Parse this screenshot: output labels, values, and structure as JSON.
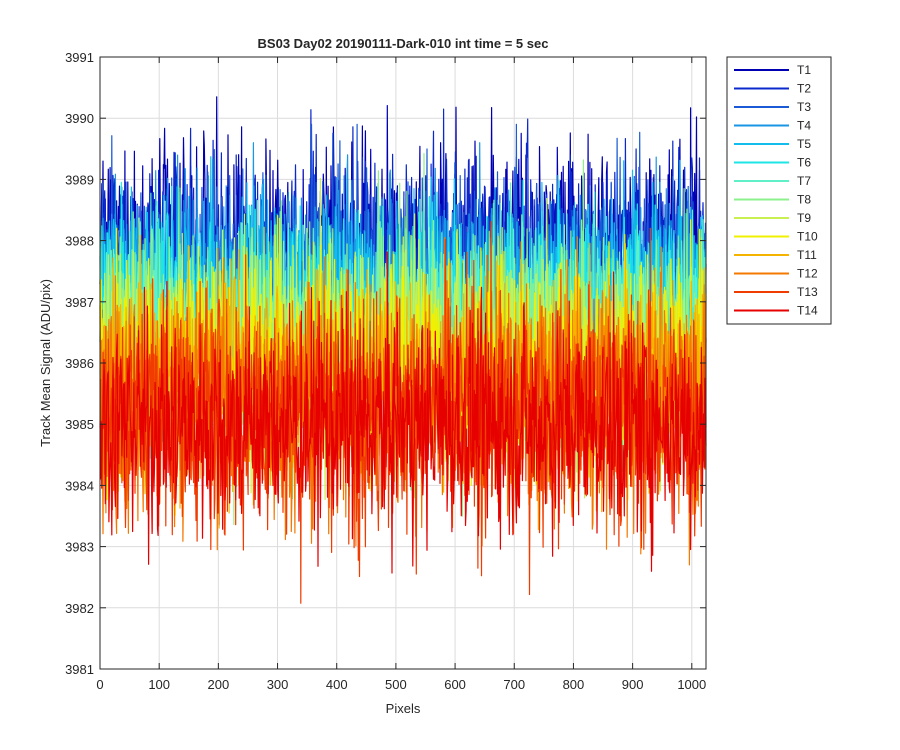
{
  "chart_data": {
    "type": "line",
    "title": "BS03 Day02 20190111-Dark-010 int time = 5 sec",
    "xlabel": "Pixels",
    "ylabel": "Track Mean Signal (ADU/pix)",
    "xlim": [
      0,
      1024
    ],
    "ylim": [
      3981,
      3991
    ],
    "xticks": [
      0,
      100,
      200,
      300,
      400,
      500,
      600,
      700,
      800,
      900,
      1000
    ],
    "yticks": [
      3981,
      3982,
      3983,
      3984,
      3985,
      3986,
      3987,
      3988,
      3989,
      3990,
      3991
    ],
    "grid": true,
    "legend_position": "outside-top-right",
    "points_per_series": 1024,
    "series": [
      {
        "name": "T1",
        "color": "#0000b3",
        "approx_mean": 3987.8,
        "approx_min": 3983.6,
        "approx_max": 3990.35
      },
      {
        "name": "T2",
        "color": "#0a28cc",
        "approx_mean": 3987.6,
        "approx_min": 3983.6,
        "approx_max": 3990.35
      },
      {
        "name": "T3",
        "color": "#1a5ad6",
        "approx_mean": 3987.4,
        "approx_min": 3983.5,
        "approx_max": 3989.9
      },
      {
        "name": "T4",
        "color": "#1a96e6",
        "approx_mean": 3987.2,
        "approx_min": 3983.4,
        "approx_max": 3989.6
      },
      {
        "name": "T5",
        "color": "#12bcec",
        "approx_mean": 3987.0,
        "approx_min": 3983.3,
        "approx_max": 3989.5
      },
      {
        "name": "T6",
        "color": "#1ee6e6",
        "approx_mean": 3986.8,
        "approx_min": 3983.2,
        "approx_max": 3989.4
      },
      {
        "name": "T7",
        "color": "#5ff0c8",
        "approx_mean": 3986.6,
        "approx_min": 3983.1,
        "approx_max": 3989.3
      },
      {
        "name": "T8",
        "color": "#8cf08c",
        "approx_mean": 3986.4,
        "approx_min": 3983.0,
        "approx_max": 3989.9
      },
      {
        "name": "T9",
        "color": "#c8f050",
        "approx_mean": 3986.2,
        "approx_min": 3982.9,
        "approx_max": 3989.2
      },
      {
        "name": "T10",
        "color": "#f0f000",
        "approx_mean": 3986.0,
        "approx_min": 3982.8,
        "approx_max": 3989.1
      },
      {
        "name": "T11",
        "color": "#f5b400",
        "approx_mean": 3985.7,
        "approx_min": 3982.6,
        "approx_max": 3989.0
      },
      {
        "name": "T12",
        "color": "#f57800",
        "approx_mean": 3985.4,
        "approx_min": 3981.85,
        "approx_max": 3988.9
      },
      {
        "name": "T13",
        "color": "#f03c00",
        "approx_mean": 3985.2,
        "approx_min": 3981.5,
        "approx_max": 3988.6
      },
      {
        "name": "T14",
        "color": "#e60000",
        "approx_mean": 3985.0,
        "approx_min": 3982.0,
        "approx_max": 3988.3
      }
    ]
  }
}
